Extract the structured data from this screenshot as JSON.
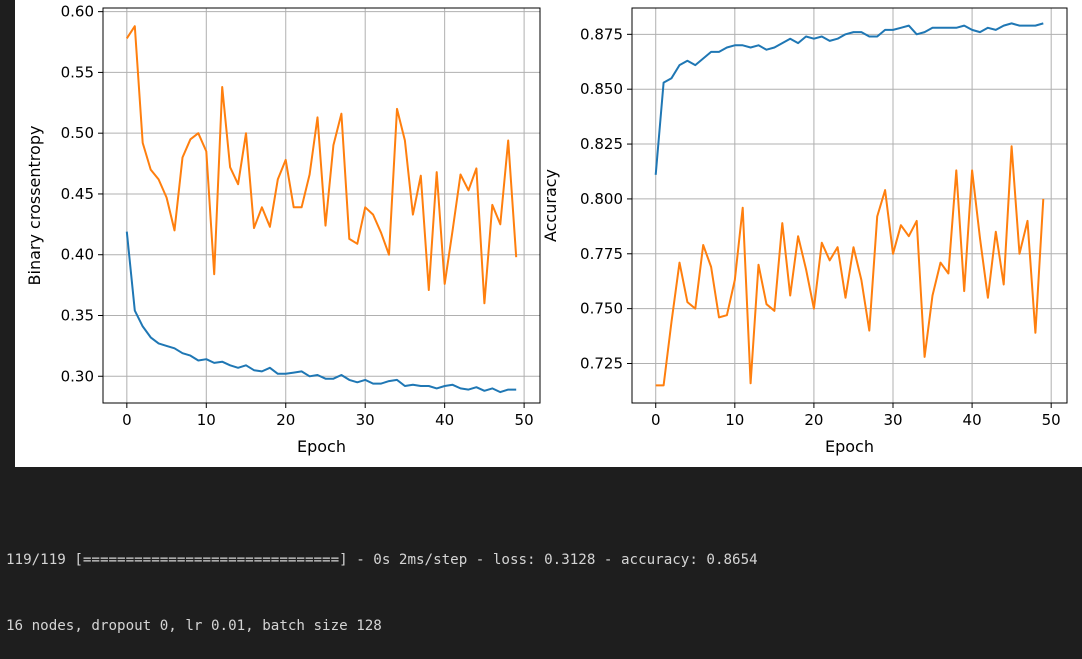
{
  "chart_data": [
    {
      "type": "line",
      "xlabel": "Epoch",
      "ylabel": "Binary crossentropy",
      "xlim": [
        -3,
        52
      ],
      "ylim": [
        0.278,
        0.603
      ],
      "xticks": [
        0,
        10,
        20,
        30,
        40,
        50
      ],
      "yticks": [
        0.3,
        0.35,
        0.4,
        0.45,
        0.5,
        0.55,
        0.6
      ],
      "ytick_labels": [
        "0.30",
        "0.35",
        "0.40",
        "0.45",
        "0.50",
        "0.55",
        "0.60"
      ],
      "grid": true,
      "x": [
        0,
        1,
        2,
        3,
        4,
        5,
        6,
        7,
        8,
        9,
        10,
        11,
        12,
        13,
        14,
        15,
        16,
        17,
        18,
        19,
        20,
        21,
        22,
        23,
        24,
        25,
        26,
        27,
        28,
        29,
        30,
        31,
        32,
        33,
        34,
        35,
        36,
        37,
        38,
        39,
        40,
        41,
        42,
        43,
        44,
        45,
        46,
        47,
        48,
        49
      ],
      "series": [
        {
          "color": "#1f77b4",
          "values": [
            0.419,
            0.354,
            0.341,
            0.332,
            0.327,
            0.325,
            0.323,
            0.319,
            0.317,
            0.313,
            0.314,
            0.311,
            0.312,
            0.309,
            0.307,
            0.309,
            0.305,
            0.304,
            0.307,
            0.302,
            0.302,
            0.303,
            0.304,
            0.3,
            0.301,
            0.298,
            0.298,
            0.301,
            0.297,
            0.295,
            0.297,
            0.294,
            0.294,
            0.296,
            0.297,
            0.292,
            0.293,
            0.292,
            0.292,
            0.29,
            0.292,
            0.293,
            0.29,
            0.289,
            0.291,
            0.288,
            0.29,
            0.287,
            0.289,
            0.289
          ]
        },
        {
          "color": "#ff7f0e",
          "values": [
            0.578,
            0.588,
            0.492,
            0.47,
            0.462,
            0.447,
            0.42,
            0.48,
            0.495,
            0.5,
            0.485,
            0.384,
            0.538,
            0.472,
            0.458,
            0.5,
            0.422,
            0.439,
            0.423,
            0.462,
            0.478,
            0.439,
            0.439,
            0.466,
            0.513,
            0.424,
            0.49,
            0.516,
            0.413,
            0.409,
            0.439,
            0.433,
            0.418,
            0.4,
            0.52,
            0.494,
            0.433,
            0.465,
            0.371,
            0.468,
            0.376,
            0.42,
            0.466,
            0.453,
            0.471,
            0.36,
            0.441,
            0.425,
            0.494,
            0.398
          ]
        }
      ]
    },
    {
      "type": "line",
      "xlabel": "Epoch",
      "ylabel": "Accuracy",
      "xlim": [
        -3,
        52
      ],
      "ylim": [
        0.707,
        0.887
      ],
      "xticks": [
        0,
        10,
        20,
        30,
        40,
        50
      ],
      "yticks": [
        0.725,
        0.75,
        0.775,
        0.8,
        0.825,
        0.85,
        0.875
      ],
      "ytick_labels": [
        "0.725",
        "0.750",
        "0.775",
        "0.800",
        "0.825",
        "0.850",
        "0.875"
      ],
      "grid": true,
      "x": [
        0,
        1,
        2,
        3,
        4,
        5,
        6,
        7,
        8,
        9,
        10,
        11,
        12,
        13,
        14,
        15,
        16,
        17,
        18,
        19,
        20,
        21,
        22,
        23,
        24,
        25,
        26,
        27,
        28,
        29,
        30,
        31,
        32,
        33,
        34,
        35,
        36,
        37,
        38,
        39,
        40,
        41,
        42,
        43,
        44,
        45,
        46,
        47,
        48,
        49
      ],
      "series": [
        {
          "color": "#1f77b4",
          "values": [
            0.811,
            0.853,
            0.855,
            0.861,
            0.863,
            0.861,
            0.864,
            0.867,
            0.867,
            0.869,
            0.87,
            0.87,
            0.869,
            0.87,
            0.868,
            0.869,
            0.871,
            0.873,
            0.871,
            0.874,
            0.873,
            0.874,
            0.872,
            0.873,
            0.875,
            0.876,
            0.876,
            0.874,
            0.874,
            0.877,
            0.877,
            0.878,
            0.879,
            0.875,
            0.876,
            0.878,
            0.878,
            0.878,
            0.878,
            0.879,
            0.877,
            0.876,
            0.878,
            0.877,
            0.879,
            0.88,
            0.879,
            0.879,
            0.879,
            0.88
          ]
        },
        {
          "color": "#ff7f0e",
          "values": [
            0.715,
            0.715,
            0.744,
            0.771,
            0.753,
            0.75,
            0.779,
            0.769,
            0.746,
            0.747,
            0.763,
            0.796,
            0.716,
            0.77,
            0.752,
            0.749,
            0.789,
            0.756,
            0.783,
            0.768,
            0.75,
            0.78,
            0.772,
            0.778,
            0.755,
            0.778,
            0.763,
            0.74,
            0.792,
            0.804,
            0.775,
            0.788,
            0.783,
            0.79,
            0.728,
            0.756,
            0.771,
            0.766,
            0.813,
            0.758,
            0.813,
            0.782,
            0.755,
            0.785,
            0.761,
            0.824,
            0.775,
            0.79,
            0.739,
            0.8
          ]
        }
      ]
    }
  ],
  "console": {
    "line1": "119/119 [==============================] - 0s 2ms/step - loss: 0.3128 - accuracy: 0.8654",
    "line2": "16 nodes, dropout 0, lr 0.01, batch size 128"
  }
}
